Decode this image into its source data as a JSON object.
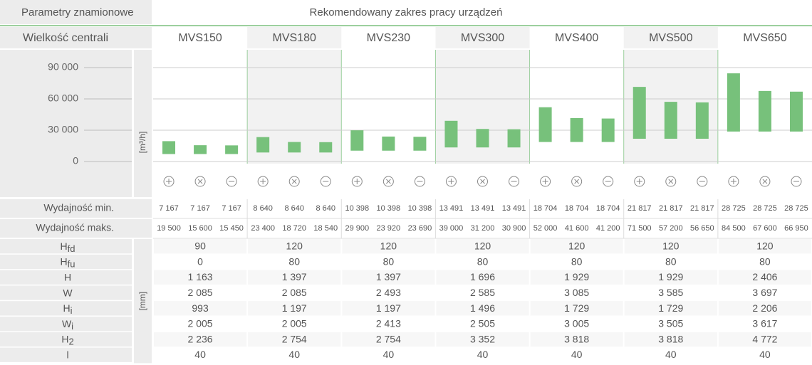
{
  "header": {
    "left": "Parametry znamionowe",
    "right": "Rekomendowany zakres pracy urządzeń"
  },
  "size_label": "Wielkość centrali",
  "models": [
    "MVS150",
    "MVS180",
    "MVS230",
    "MVS300",
    "MVS400",
    "MVS500",
    "MVS650"
  ],
  "chart_data": {
    "type": "range-bar",
    "y_label": "[m³/h]",
    "color": "#77c17b",
    "ylim": [
      0,
      105000
    ],
    "yticks": [
      0,
      {
        "value": 30000,
        "label": "30 000"
      },
      {
        "value": 60000,
        "label": "60 000"
      },
      {
        "value": 90000,
        "label": "90 000"
      }
    ],
    "grid": true,
    "min": {
      "label": "Wydajność min.",
      "values": [
        7167,
        7167,
        7167,
        8640,
        8640,
        8640,
        10398,
        10398,
        10398,
        13491,
        13491,
        13491,
        18704,
        18704,
        18704,
        21817,
        21817,
        21817,
        28725,
        28725,
        28725
      ],
      "value_labels": [
        "7 167",
        "7 167",
        "7 167",
        "8 640",
        "8 640",
        "8 640",
        "10 398",
        "10 398",
        "10 398",
        "13 491",
        "13 491",
        "13 491",
        "18 704",
        "18 704",
        "18 704",
        "21 817",
        "21 817",
        "21 817",
        "28 725",
        "28 725",
        "28 725"
      ]
    },
    "max": {
      "label": "Wydajność maks.",
      "values": [
        19500,
        15600,
        15450,
        23400,
        18720,
        18540,
        29900,
        23920,
        23690,
        39000,
        31200,
        30900,
        52000,
        41600,
        41200,
        71500,
        57200,
        56650,
        84500,
        67600,
        66950
      ],
      "value_labels": [
        "19 500",
        "15 600",
        "15 450",
        "23 400",
        "18 720",
        "18 540",
        "29 900",
        "23 920",
        "23 690",
        "39 000",
        "31 200",
        "30 900",
        "52 000",
        "41 600",
        "41 200",
        "71 500",
        "57 200",
        "56 650",
        "84 500",
        "67 600",
        "66 950"
      ]
    }
  },
  "dimensions": {
    "unit": "[mm]",
    "rows": [
      {
        "label": "H",
        "sub": "fd",
        "values": [
          "90",
          "120",
          "120",
          "120",
          "120",
          "120",
          "120"
        ]
      },
      {
        "label": "H",
        "sub": "fu",
        "values": [
          "0",
          "80",
          "80",
          "80",
          "80",
          "80",
          "80"
        ]
      },
      {
        "label": "H",
        "values": [
          "1 163",
          "1 397",
          "1 397",
          "1 696",
          "1 929",
          "1 929",
          "2 406"
        ]
      },
      {
        "label": "W",
        "values": [
          "2 085",
          "2 085",
          "2 493",
          "2 585",
          "3 085",
          "3 585",
          "3 697"
        ]
      },
      {
        "label": "H",
        "sub": "i",
        "values": [
          "993",
          "1 197",
          "1 197",
          "1 496",
          "1 729",
          "1 729",
          "2 206"
        ]
      },
      {
        "label": "W",
        "sub": "i",
        "values": [
          "2 005",
          "2 005",
          "2 413",
          "2 505",
          "3 005",
          "3 505",
          "3 617"
        ]
      },
      {
        "label": "H",
        "sub": "2",
        "values": [
          "2 236",
          "2 754",
          "2 754",
          "3 352",
          "3 818",
          "3 818",
          "4 772"
        ]
      },
      {
        "label": "l",
        "values": [
          "40",
          "40",
          "40",
          "40",
          "40",
          "40",
          "40"
        ]
      }
    ]
  }
}
